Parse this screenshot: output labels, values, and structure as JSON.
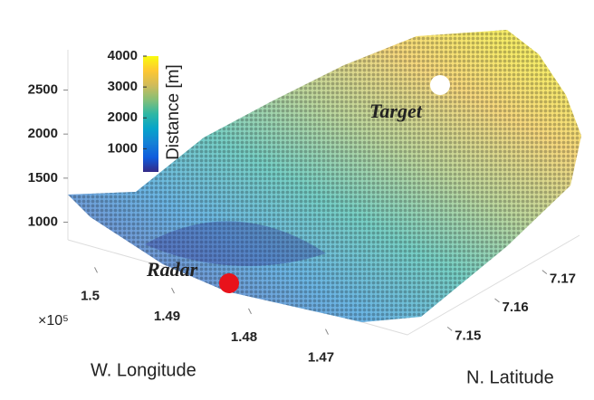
{
  "chart_data": {
    "type": "scatter3d",
    "annotations": [
      "Target",
      "Radar"
    ],
    "x_label": "W. Longitude",
    "y_label": "N. Latitude",
    "x_exponent_label": "×10⁵",
    "xlim": [
      1.465,
      1.505
    ],
    "xticks": [
      1.5,
      1.49,
      1.48,
      1.47
    ],
    "ylim": [
      7.145,
      7.175
    ],
    "yticks": [
      7.15,
      7.16,
      7.17
    ],
    "zlim": [
      800,
      2700
    ],
    "zticks": [
      2500,
      2000,
      1500,
      1000
    ],
    "colorbar": {
      "label": "Distance [m]",
      "clim": [
        250,
        4000
      ],
      "ticks": [
        4000,
        3000,
        2000,
        1000
      ],
      "colors": [
        "#352a87",
        "#0f5cdd",
        "#1481d6",
        "#06a4ca",
        "#2eb7a4",
        "#87bf77",
        "#d1bb59",
        "#fec832",
        "#f9fb0e"
      ]
    }
  }
}
